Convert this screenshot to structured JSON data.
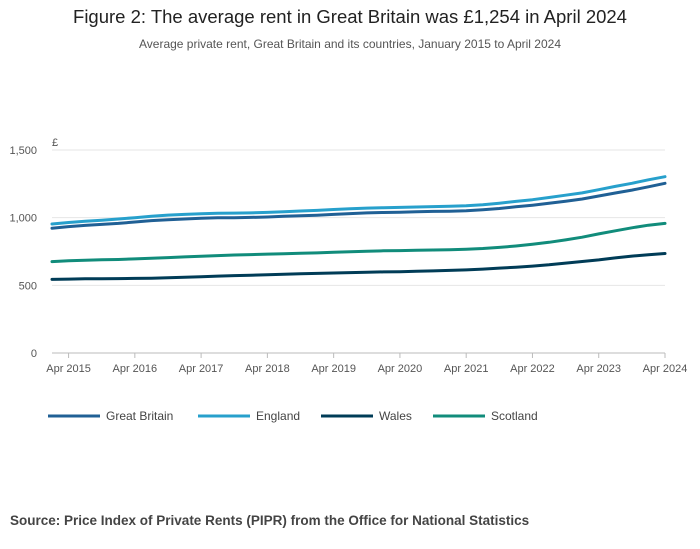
{
  "title": "Figure 2: The average rent in Great Britain was £1,254 in April 2024",
  "subtitle": "Average private rent, Great Britain and its countries, January 2015 to April 2024",
  "source": "Source: Price Index of Private Rents (PIPR) from the Office for National Statistics",
  "chart_data": {
    "type": "line",
    "title": "Figure 2: The average rent in Great Britain was £1,254 in April 2024",
    "ylabel": "£",
    "xlabel": "",
    "ylim": [
      0,
      1500
    ],
    "yticks": [
      0,
      500,
      1000,
      1500
    ],
    "ytick_labels": [
      "0",
      "500",
      "1,000",
      "1,500"
    ],
    "xlim": [
      2015.0,
      2024.25
    ],
    "xticks": [
      2015.25,
      2016.25,
      2017.25,
      2018.25,
      2019.25,
      2020.25,
      2021.25,
      2022.25,
      2023.25,
      2024.25
    ],
    "xtick_labels": [
      "Apr 2015",
      "Apr 2016",
      "Apr 2017",
      "Apr 2018",
      "Apr 2019",
      "Apr 2020",
      "Apr 2021",
      "Apr 2022",
      "Apr 2023",
      "Apr 2024"
    ],
    "grid": true,
    "legend_position": "bottom",
    "x": [
      2015.0,
      2015.25,
      2015.5,
      2015.75,
      2016.0,
      2016.25,
      2016.5,
      2016.75,
      2017.0,
      2017.25,
      2017.5,
      2017.75,
      2018.0,
      2018.25,
      2018.5,
      2018.75,
      2019.0,
      2019.25,
      2019.5,
      2019.75,
      2020.0,
      2020.25,
      2020.5,
      2020.75,
      2021.0,
      2021.25,
      2021.5,
      2021.75,
      2022.0,
      2022.25,
      2022.5,
      2022.75,
      2023.0,
      2023.25,
      2023.5,
      2023.75,
      2024.0,
      2024.25
    ],
    "series": [
      {
        "name": "Great Britain",
        "color": "#206095",
        "values": [
          922,
          934,
          943,
          950,
          958,
          968,
          978,
          985,
          990,
          995,
          999,
          1000,
          1002,
          1005,
          1010,
          1014,
          1018,
          1024,
          1030,
          1035,
          1038,
          1040,
          1043,
          1046,
          1048,
          1051,
          1058,
          1068,
          1080,
          1092,
          1106,
          1122,
          1138,
          1160,
          1182,
          1204,
          1228,
          1254
        ]
      },
      {
        "name": "England",
        "color": "#27a0cc",
        "values": [
          953,
          964,
          973,
          981,
          990,
          1000,
          1011,
          1019,
          1024,
          1029,
          1033,
          1034,
          1035,
          1039,
          1044,
          1049,
          1054,
          1060,
          1066,
          1071,
          1074,
          1076,
          1079,
          1082,
          1084,
          1088,
          1096,
          1107,
          1120,
          1133,
          1149,
          1166,
          1183,
          1207,
          1231,
          1254,
          1280,
          1303
        ]
      },
      {
        "name": "Wales",
        "color": "#003c57",
        "values": [
          544,
          546,
          548,
          549,
          550,
          551,
          553,
          556,
          560,
          564,
          568,
          572,
          575,
          578,
          582,
          585,
          588,
          591,
          594,
          597,
          599,
          601,
          604,
          607,
          610,
          614,
          620,
          627,
          634,
          642,
          652,
          664,
          676,
          688,
          703,
          716,
          726,
          735
        ]
      },
      {
        "name": "Scotland",
        "color": "#118c7b",
        "values": [
          675,
          681,
          686,
          689,
          691,
          695,
          700,
          705,
          710,
          715,
          720,
          724,
          727,
          731,
          734,
          737,
          740,
          744,
          748,
          752,
          755,
          757,
          759,
          761,
          763,
          767,
          772,
          780,
          791,
          803,
          818,
          836,
          856,
          880,
          903,
          925,
          944,
          958
        ]
      }
    ]
  }
}
